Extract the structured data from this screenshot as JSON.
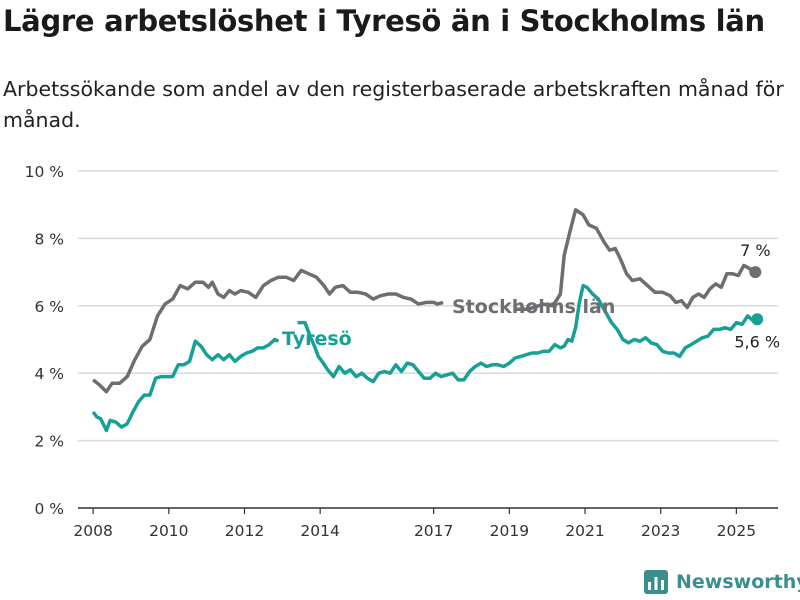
{
  "title": "Lägre arbetslöshet i Tyresö än i Stockholms län",
  "subtitle": "Arbetssökande som andel av den registerbaserade arbetskraften månad för månad.",
  "brand": "Newsworthy",
  "colors": {
    "stockholm": "#6d6e71",
    "tyreso": "#17a096",
    "grid": "#d9d9d9",
    "axis": "#333333",
    "brand": "#3a8f8d"
  },
  "chart_data": {
    "type": "line",
    "ylim": [
      0,
      10
    ],
    "xlim": [
      2007.6,
      2026.1
    ],
    "y_ticks": [
      0,
      2,
      4,
      6,
      8,
      10
    ],
    "y_tick_labels": [
      "0 %",
      "2 %",
      "4 %",
      "6 %",
      "8 %",
      "10 %"
    ],
    "x_ticks": [
      2008,
      2010,
      2012,
      2014,
      2017,
      2019,
      2021,
      2023,
      2025
    ],
    "x_tick_labels": [
      "2008",
      "2010",
      "2012",
      "2014",
      "2017",
      "2019",
      "2021",
      "2023",
      "2025"
    ],
    "grid": "horizontal",
    "series": [
      {
        "name": "Stockholms län",
        "end_label": "7 %",
        "points": [
          [
            2008.0,
            3.8
          ],
          [
            2008.17,
            3.65
          ],
          [
            2008.35,
            3.45
          ],
          [
            2008.5,
            3.7
          ],
          [
            2008.7,
            3.7
          ],
          [
            2008.9,
            3.9
          ],
          [
            2009.1,
            4.4
          ],
          [
            2009.3,
            4.8
          ],
          [
            2009.5,
            5.0
          ],
          [
            2009.7,
            5.7
          ],
          [
            2009.9,
            6.05
          ],
          [
            2010.1,
            6.2
          ],
          [
            2010.3,
            6.6
          ],
          [
            2010.5,
            6.5
          ],
          [
            2010.7,
            6.7
          ],
          [
            2010.9,
            6.7
          ],
          [
            2011.05,
            6.55
          ],
          [
            2011.15,
            6.7
          ],
          [
            2011.3,
            6.35
          ],
          [
            2011.45,
            6.25
          ],
          [
            2011.6,
            6.45
          ],
          [
            2011.75,
            6.35
          ],
          [
            2011.9,
            6.45
          ],
          [
            2012.1,
            6.4
          ],
          [
            2012.3,
            6.25
          ],
          [
            2012.5,
            6.6
          ],
          [
            2012.7,
            6.75
          ],
          [
            2012.9,
            6.85
          ],
          [
            2013.1,
            6.85
          ],
          [
            2013.3,
            6.75
          ],
          [
            2013.5,
            7.05
          ],
          [
            2013.7,
            6.95
          ],
          [
            2013.9,
            6.85
          ],
          [
            2014.1,
            6.6
          ],
          [
            2014.25,
            6.35
          ],
          [
            2014.4,
            6.55
          ],
          [
            2014.6,
            6.6
          ],
          [
            2014.8,
            6.4
          ],
          [
            2015.0,
            6.4
          ],
          [
            2015.2,
            6.35
          ],
          [
            2015.4,
            6.2
          ],
          [
            2015.6,
            6.3
          ],
          [
            2015.8,
            6.35
          ],
          [
            2016.0,
            6.35
          ],
          [
            2016.2,
            6.25
          ],
          [
            2016.4,
            6.2
          ],
          [
            2016.6,
            6.05
          ],
          [
            2016.8,
            6.1
          ],
          [
            2017.0,
            6.1
          ],
          [
            2017.1,
            6.05
          ],
          [
            2017.25,
            6.1
          ]
        ],
        "points_after_label": [
          [
            2019.15,
            5.9
          ],
          [
            2019.5,
            5.9
          ],
          [
            2019.9,
            6.05
          ],
          [
            2020.15,
            6.0
          ],
          [
            2020.35,
            6.35
          ],
          [
            2020.45,
            7.5
          ],
          [
            2020.6,
            8.2
          ],
          [
            2020.75,
            8.85
          ],
          [
            2020.95,
            8.7
          ],
          [
            2021.1,
            8.4
          ],
          [
            2021.3,
            8.3
          ],
          [
            2021.5,
            7.9
          ],
          [
            2021.65,
            7.65
          ],
          [
            2021.8,
            7.7
          ],
          [
            2021.95,
            7.35
          ],
          [
            2022.1,
            6.95
          ],
          [
            2022.25,
            6.75
          ],
          [
            2022.45,
            6.8
          ],
          [
            2022.65,
            6.6
          ],
          [
            2022.85,
            6.4
          ],
          [
            2023.05,
            6.4
          ],
          [
            2023.25,
            6.3
          ],
          [
            2023.4,
            6.1
          ],
          [
            2023.55,
            6.15
          ],
          [
            2023.7,
            5.95
          ],
          [
            2023.85,
            6.25
          ],
          [
            2024.0,
            6.35
          ],
          [
            2024.15,
            6.25
          ],
          [
            2024.3,
            6.5
          ],
          [
            2024.45,
            6.65
          ],
          [
            2024.6,
            6.55
          ],
          [
            2024.75,
            6.95
          ],
          [
            2024.9,
            6.95
          ],
          [
            2025.05,
            6.9
          ],
          [
            2025.2,
            7.2
          ],
          [
            2025.35,
            7.1
          ],
          [
            2025.5,
            7.0
          ]
        ]
      },
      {
        "name": "Tyresö",
        "end_label": "5,6 %",
        "points_before_label": [
          [
            2008.0,
            2.85
          ],
          [
            2008.1,
            2.7
          ],
          [
            2008.2,
            2.65
          ],
          [
            2008.35,
            2.3
          ],
          [
            2008.45,
            2.6
          ],
          [
            2008.6,
            2.55
          ],
          [
            2008.75,
            2.4
          ],
          [
            2008.9,
            2.5
          ],
          [
            2009.05,
            2.85
          ],
          [
            2009.2,
            3.15
          ],
          [
            2009.35,
            3.35
          ],
          [
            2009.5,
            3.35
          ],
          [
            2009.65,
            3.85
          ],
          [
            2009.8,
            3.9
          ],
          [
            2009.95,
            3.9
          ],
          [
            2010.1,
            3.9
          ],
          [
            2010.25,
            4.25
          ],
          [
            2010.4,
            4.25
          ],
          [
            2010.55,
            4.35
          ],
          [
            2010.7,
            4.95
          ],
          [
            2010.85,
            4.8
          ],
          [
            2011.0,
            4.55
          ],
          [
            2011.15,
            4.4
          ],
          [
            2011.3,
            4.55
          ],
          [
            2011.45,
            4.4
          ],
          [
            2011.6,
            4.55
          ],
          [
            2011.75,
            4.35
          ],
          [
            2011.9,
            4.5
          ],
          [
            2012.05,
            4.6
          ],
          [
            2012.2,
            4.65
          ],
          [
            2012.35,
            4.75
          ],
          [
            2012.5,
            4.75
          ],
          [
            2012.65,
            4.85
          ],
          [
            2012.8,
            5.0
          ],
          [
            2012.9,
            4.95
          ]
        ],
        "points": [
          [
            2013.4,
            5.5
          ],
          [
            2013.6,
            5.5
          ],
          [
            2013.75,
            5.05
          ],
          [
            2013.85,
            4.8
          ],
          [
            2013.95,
            4.5
          ],
          [
            2014.05,
            4.35
          ],
          [
            2014.2,
            4.1
          ],
          [
            2014.35,
            3.9
          ],
          [
            2014.5,
            4.2
          ],
          [
            2014.65,
            4.0
          ],
          [
            2014.8,
            4.1
          ],
          [
            2014.95,
            3.9
          ],
          [
            2015.1,
            4.0
          ],
          [
            2015.25,
            3.85
          ],
          [
            2015.4,
            3.75
          ],
          [
            2015.55,
            4.0
          ],
          [
            2015.7,
            4.05
          ],
          [
            2015.85,
            4.0
          ],
          [
            2016.0,
            4.25
          ],
          [
            2016.15,
            4.05
          ],
          [
            2016.3,
            4.3
          ],
          [
            2016.45,
            4.25
          ],
          [
            2016.6,
            4.05
          ],
          [
            2016.75,
            3.85
          ],
          [
            2016.9,
            3.85
          ],
          [
            2017.05,
            4.0
          ],
          [
            2017.2,
            3.9
          ],
          [
            2017.35,
            3.95
          ],
          [
            2017.5,
            4.0
          ],
          [
            2017.65,
            3.8
          ],
          [
            2017.8,
            3.8
          ],
          [
            2017.95,
            4.05
          ],
          [
            2018.1,
            4.2
          ],
          [
            2018.25,
            4.3
          ],
          [
            2018.4,
            4.2
          ],
          [
            2018.55,
            4.25
          ],
          [
            2018.7,
            4.25
          ],
          [
            2018.85,
            4.2
          ],
          [
            2019.0,
            4.3
          ],
          [
            2019.15,
            4.45
          ],
          [
            2019.3,
            4.5
          ],
          [
            2019.45,
            4.55
          ],
          [
            2019.6,
            4.6
          ],
          [
            2019.75,
            4.6
          ],
          [
            2019.9,
            4.65
          ],
          [
            2020.05,
            4.65
          ],
          [
            2020.2,
            4.85
          ],
          [
            2020.35,
            4.75
          ],
          [
            2020.45,
            4.8
          ],
          [
            2020.55,
            5.0
          ],
          [
            2020.65,
            4.95
          ],
          [
            2020.75,
            5.35
          ],
          [
            2020.85,
            6.1
          ],
          [
            2020.95,
            6.6
          ],
          [
            2021.05,
            6.55
          ],
          [
            2021.2,
            6.35
          ],
          [
            2021.35,
            6.2
          ],
          [
            2021.55,
            5.8
          ],
          [
            2021.7,
            5.5
          ],
          [
            2021.85,
            5.3
          ],
          [
            2022.0,
            5.0
          ],
          [
            2022.15,
            4.9
          ],
          [
            2022.3,
            5.0
          ],
          [
            2022.45,
            4.95
          ],
          [
            2022.6,
            5.05
          ],
          [
            2022.75,
            4.9
          ],
          [
            2022.9,
            4.85
          ],
          [
            2023.05,
            4.65
          ],
          [
            2023.2,
            4.6
          ],
          [
            2023.35,
            4.6
          ],
          [
            2023.5,
            4.5
          ],
          [
            2023.65,
            4.75
          ],
          [
            2023.8,
            4.85
          ],
          [
            2023.95,
            4.95
          ],
          [
            2024.1,
            5.05
          ],
          [
            2024.25,
            5.1
          ],
          [
            2024.4,
            5.3
          ],
          [
            2024.55,
            5.3
          ],
          [
            2024.7,
            5.35
          ],
          [
            2024.85,
            5.3
          ],
          [
            2025.0,
            5.5
          ],
          [
            2025.15,
            5.45
          ],
          [
            2025.3,
            5.7
          ],
          [
            2025.45,
            5.55
          ],
          [
            2025.55,
            5.6
          ]
        ]
      }
    ]
  }
}
